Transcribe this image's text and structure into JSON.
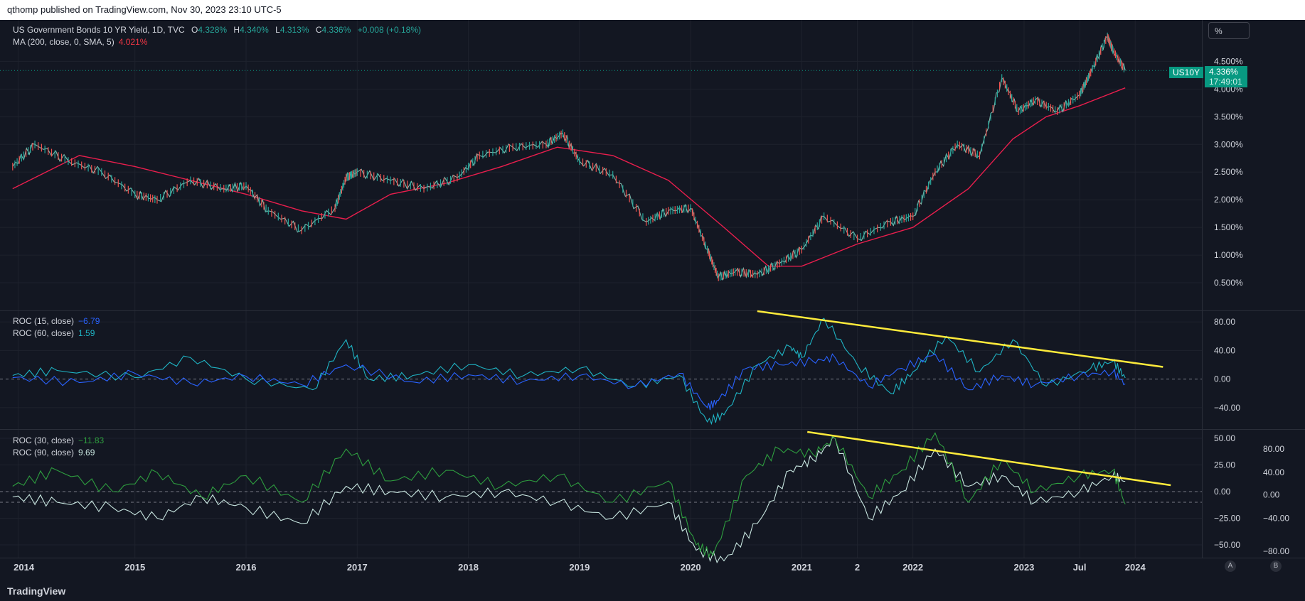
{
  "header": {
    "published": "qthomp published on TradingView.com, Nov 30, 2023 23:10 UTC-5"
  },
  "footer": {
    "logo": "TradingView"
  },
  "toolbar": {
    "unit": "%"
  },
  "buttons": {
    "a": "A",
    "b": "B"
  },
  "colors": {
    "bg": "#131722",
    "grid": "#1e222d",
    "up": "#26a69a",
    "down": "#ef5350",
    "ma": "#e91e4d",
    "roc15": "#2962ff",
    "roc60": "#1fb4c4",
    "roc30": "#2e9e3f",
    "roc90": "#c8e6e0",
    "trend": "#ffeb3b",
    "tag": "#089981"
  },
  "main_legend": {
    "title": "US Government Bonds 10 YR Yield, 1D, TVC",
    "o_label": "O",
    "o": "4.328%",
    "h_label": "H",
    "h": "4.340%",
    "l_label": "L",
    "l": "4.313%",
    "c_label": "C",
    "c": "4.336%",
    "change": "+0.008 (+0.18%)",
    "ma_title": "MA (200, close, 0, SMA, 5)",
    "ma_value": "4.021%"
  },
  "roc_legend_1": {
    "a_title": "ROC (15, close)",
    "a_value": "−6.79",
    "b_title": "ROC (60, close)",
    "b_value": "1.59"
  },
  "roc_legend_2": {
    "a_title": "ROC (30, close)",
    "a_value": "−11.83",
    "b_title": "ROC (90, close)",
    "b_value": "9.69"
  },
  "price_tag": {
    "symbol": "US10Y",
    "price": "4.336%",
    "countdown": "17:49:01"
  },
  "chart_data": [
    {
      "type": "line",
      "title": "US Government Bonds 10 YR Yield, 1D, TVC",
      "x_ticks": [
        "2014",
        "2015",
        "2016",
        "2017",
        "2018",
        "2019",
        "2020",
        "2021",
        "2",
        "2022",
        "2023",
        "Jul",
        "2024"
      ],
      "y_ticks": [
        "0.500%",
        "1.000%",
        "1.500%",
        "2.000%",
        "2.500%",
        "3.000%",
        "3.500%",
        "4.000%",
        "4.500%"
      ],
      "ylim": [
        0.0,
        5.25
      ],
      "series": [
        {
          "name": "US10Y",
          "x": [
            2013.9,
            2014.1,
            2014.4,
            2014.7,
            2015.0,
            2015.2,
            2015.5,
            2015.8,
            2016.0,
            2016.2,
            2016.5,
            2016.8,
            2016.9,
            2017.0,
            2017.3,
            2017.6,
            2017.9,
            2018.1,
            2018.4,
            2018.7,
            2018.85,
            2019.0,
            2019.3,
            2019.6,
            2019.8,
            2020.0,
            2020.15,
            2020.25,
            2020.4,
            2020.6,
            2020.8,
            2021.0,
            2021.2,
            2021.5,
            2021.8,
            2022.0,
            2022.2,
            2022.4,
            2022.6,
            2022.8,
            2022.95,
            2023.1,
            2023.3,
            2023.5,
            2023.6,
            2023.75,
            2023.8,
            2023.91
          ],
          "values": [
            2.6,
            3.0,
            2.7,
            2.5,
            2.1,
            2.0,
            2.35,
            2.2,
            2.25,
            1.8,
            1.45,
            1.85,
            2.4,
            2.5,
            2.35,
            2.2,
            2.4,
            2.8,
            2.95,
            3.0,
            3.2,
            2.7,
            2.45,
            1.6,
            1.8,
            1.85,
            1.1,
            0.6,
            0.7,
            0.65,
            0.85,
            1.1,
            1.7,
            1.3,
            1.6,
            1.7,
            2.5,
            3.0,
            2.8,
            4.2,
            3.6,
            3.8,
            3.6,
            3.9,
            4.3,
            4.95,
            4.7,
            4.336
          ]
        },
        {
          "name": "MA (200, close, 0, SMA, 5)",
          "x": [
            2013.9,
            2014.5,
            2015.0,
            2015.5,
            2016.0,
            2016.5,
            2016.9,
            2017.3,
            2017.8,
            2018.3,
            2018.8,
            2019.3,
            2019.8,
            2020.3,
            2020.7,
            2021.0,
            2021.5,
            2022.0,
            2022.5,
            2022.9,
            2023.2,
            2023.5,
            2023.91
          ],
          "values": [
            2.2,
            2.8,
            2.6,
            2.35,
            2.1,
            1.8,
            1.65,
            2.1,
            2.3,
            2.6,
            2.95,
            2.8,
            2.35,
            1.5,
            0.8,
            0.8,
            1.2,
            1.5,
            2.2,
            3.1,
            3.5,
            3.7,
            4.021
          ]
        }
      ]
    },
    {
      "type": "line",
      "title": "ROC",
      "y_ticks": [
        "80.00",
        "40.00",
        "0.00",
        "−40.00"
      ],
      "ylim": [
        -70,
        95
      ],
      "series": [
        {
          "name": "ROC (15, close)",
          "x": [
            2013.9,
            2014.5,
            2015.0,
            2015.5,
            2016.0,
            2016.5,
            2016.9,
            2017.5,
            2018.0,
            2018.5,
            2019.0,
            2019.5,
            2019.9,
            2020.15,
            2020.25,
            2020.5,
            2020.8,
            2021.1,
            2021.3,
            2021.6,
            2021.9,
            2022.2,
            2022.5,
            2022.8,
            2023.1,
            2023.5,
            2023.8,
            2023.91
          ],
          "values": [
            2,
            -5,
            8,
            -6,
            4,
            -8,
            20,
            -4,
            6,
            -3,
            5,
            -10,
            8,
            -40,
            -30,
            15,
            20,
            25,
            30,
            -10,
            15,
            35,
            -15,
            5,
            -8,
            5,
            10,
            -6.79
          ]
        },
        {
          "name": "ROC (60, close)",
          "x": [
            2013.9,
            2014.3,
            2015.0,
            2015.5,
            2016.0,
            2016.6,
            2016.9,
            2017.1,
            2017.5,
            2018.0,
            2018.5,
            2019.0,
            2019.5,
            2019.9,
            2020.15,
            2020.3,
            2020.6,
            2020.9,
            2021.0,
            2021.2,
            2021.5,
            2021.8,
            2022.0,
            2022.3,
            2022.6,
            2022.9,
            2023.2,
            2023.6,
            2023.8,
            2023.91
          ],
          "values": [
            5,
            12,
            2,
            30,
            0,
            -15,
            55,
            0,
            5,
            20,
            5,
            15,
            -10,
            5,
            -60,
            -50,
            20,
            45,
            30,
            85,
            20,
            -20,
            10,
            60,
            10,
            55,
            -10,
            15,
            25,
            1.59
          ]
        }
      ],
      "trendline": {
        "x": [
          2020.6,
          2024.25
        ],
        "values": [
          95,
          17
        ]
      }
    },
    {
      "type": "line",
      "title": "ROC",
      "y_ticks_left": [
        "50.00",
        "25.00",
        "0.00",
        "−25.00",
        "−50.00"
      ],
      "y_ticks_right": [
        "80.00",
        "40.00",
        "0.00",
        "−40.00",
        "−80.00"
      ],
      "ylim": [
        -62,
        58
      ],
      "series": [
        {
          "name": "ROC (30, close)",
          "x": [
            2013.9,
            2014.3,
            2014.8,
            2015.2,
            2015.6,
            2016.0,
            2016.5,
            2016.9,
            2017.3,
            2017.8,
            2018.3,
            2018.8,
            2019.3,
            2019.8,
            2020.05,
            2020.2,
            2020.5,
            2020.8,
            2021.1,
            2021.3,
            2021.6,
            2021.9,
            2022.2,
            2022.5,
            2022.8,
            2023.1,
            2023.5,
            2023.8,
            2023.91
          ],
          "values": [
            5,
            20,
            0,
            18,
            -5,
            15,
            -10,
            40,
            10,
            20,
            5,
            15,
            -10,
            10,
            -50,
            -60,
            15,
            40,
            35,
            50,
            -5,
            20,
            55,
            -10,
            30,
            0,
            15,
            20,
            -11.83
          ]
        },
        {
          "name": "ROC (90, close)",
          "x": [
            2013.9,
            2014.3,
            2014.8,
            2015.2,
            2015.6,
            2016.0,
            2016.5,
            2016.9,
            2017.3,
            2017.8,
            2018.3,
            2018.8,
            2019.3,
            2019.8,
            2020.05,
            2020.3,
            2020.6,
            2020.9,
            2021.1,
            2021.3,
            2021.6,
            2021.9,
            2022.2,
            2022.5,
            2022.8,
            2023.1,
            2023.5,
            2023.8,
            2023.91
          ],
          "values": [
            -5,
            -10,
            -15,
            -25,
            -5,
            -15,
            -30,
            5,
            0,
            -5,
            0,
            -10,
            -25,
            -10,
            -55,
            -65,
            -30,
            20,
            30,
            50,
            -25,
            0,
            40,
            5,
            15,
            -10,
            0,
            15,
            9.69
          ]
        }
      ],
      "trendline": {
        "x": [
          2021.05,
          2024.32
        ],
        "values": [
          56,
          6
        ]
      },
      "baselines": [
        0,
        -10
      ]
    }
  ]
}
